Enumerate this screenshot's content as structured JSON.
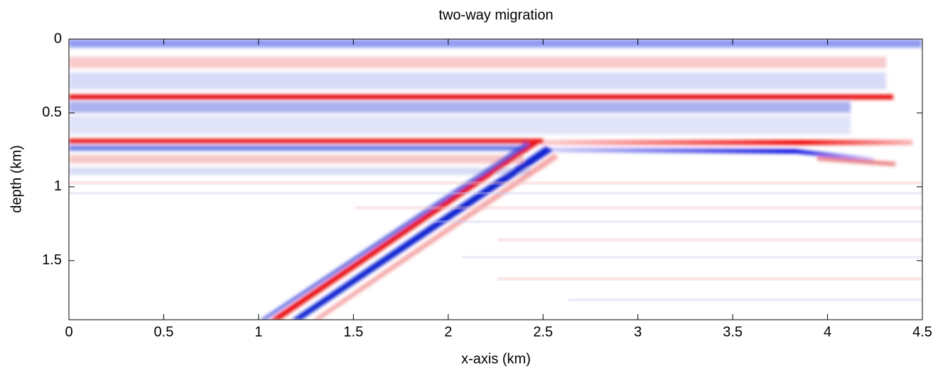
{
  "chart_data": {
    "type": "image",
    "title": "two-way migration",
    "x_label": "x-axis (km)",
    "y_label": "depth (km)",
    "xlim": [
      0,
      4.5
    ],
    "xticks": [
      0,
      0.5,
      1,
      1.5,
      2,
      2.5,
      3,
      3.5,
      4,
      4.5
    ],
    "ylim": [
      0,
      1.9
    ],
    "yticks": [
      0,
      0.5,
      1,
      1.5
    ],
    "y_reversed": true
  }
}
